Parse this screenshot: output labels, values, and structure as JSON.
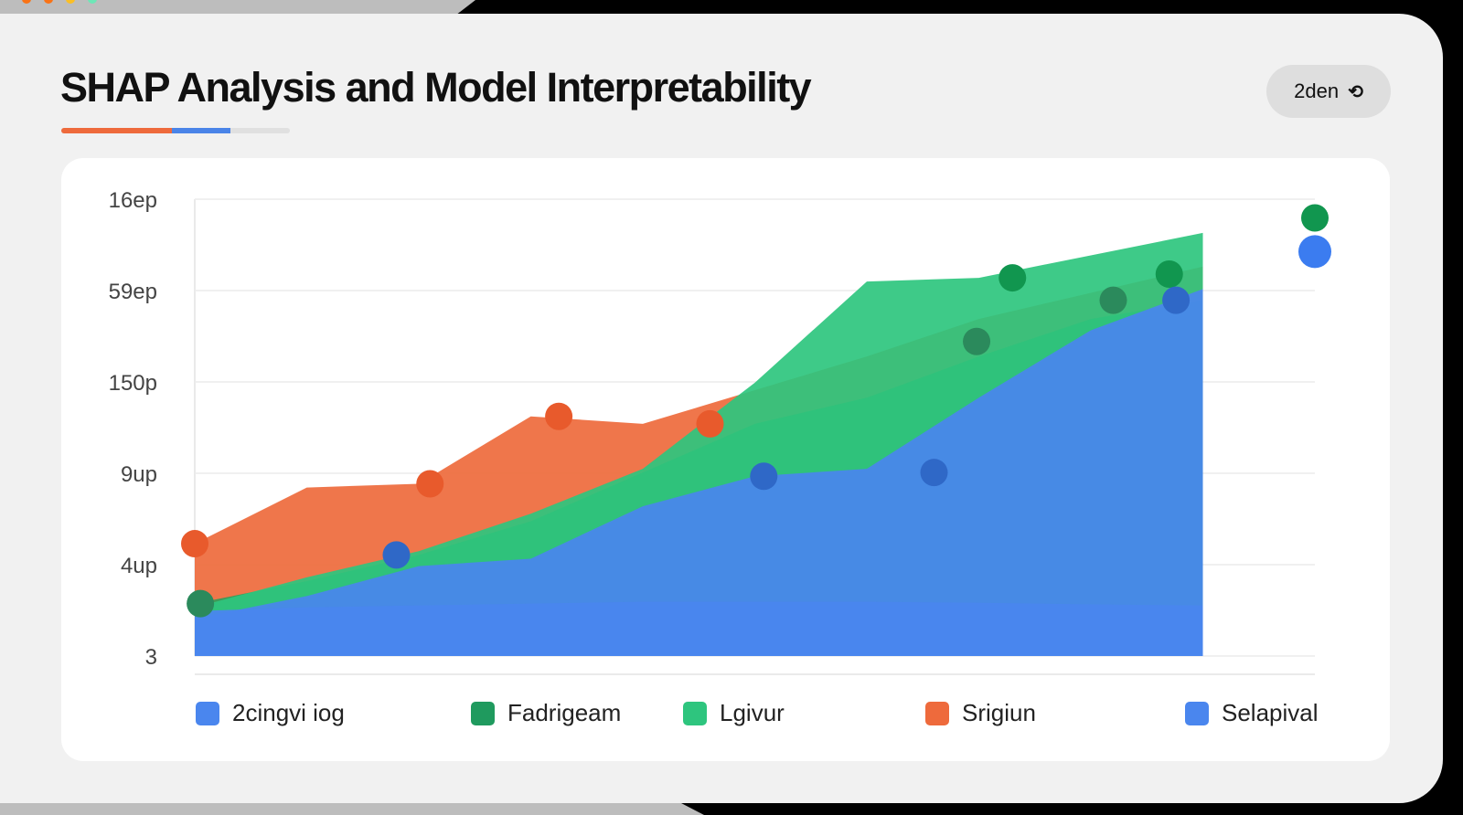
{
  "header": {
    "title": "SHAP Analysis and Model Interpretability",
    "pill_label": "2den",
    "pill_icon": "refresh-icon"
  },
  "chart_data": {
    "type": "area",
    "title": "SHAP Analysis and Model Interpretability",
    "y_ticks": [
      "16ep",
      "59ep",
      "150p",
      "9up",
      "4up",
      "3"
    ],
    "grid": true,
    "legend_position": "bottom",
    "series": [
      {
        "name": "Srigiun",
        "color": "#ee6a3c",
        "points": [
          [
            0,
            4.0
          ],
          [
            1,
            5.5
          ],
          [
            2,
            5.6
          ],
          [
            3,
            7.4
          ],
          [
            4,
            7.2
          ],
          [
            5,
            8.1
          ],
          [
            6,
            9.0
          ],
          [
            7,
            10.0
          ],
          [
            8,
            10.7
          ],
          [
            9,
            11.4
          ]
        ]
      },
      {
        "name": "Fadrigeam",
        "color": "#22a05a",
        "points": [
          [
            0,
            2.4
          ],
          [
            1,
            3.0
          ],
          [
            2,
            3.7
          ],
          [
            3,
            4.6
          ],
          [
            4,
            5.9
          ],
          [
            5,
            7.2
          ],
          [
            6,
            7.9
          ],
          [
            7,
            9.0
          ],
          [
            8,
            10.0
          ],
          [
            9,
            10.5
          ]
        ]
      },
      {
        "name": "Lgivur",
        "color": "#2ec57e",
        "points": [
          [
            0,
            2.3
          ],
          [
            1,
            3.1
          ],
          [
            2,
            3.8
          ],
          [
            3,
            4.8
          ],
          [
            4,
            6.0
          ],
          [
            5,
            8.3
          ],
          [
            6,
            11.0
          ],
          [
            7,
            11.1
          ],
          [
            8,
            11.7
          ],
          [
            9,
            12.3
          ]
        ]
      },
      {
        "name": "2cingvi iog",
        "color": "#4a86ee",
        "points": [
          [
            0,
            2.0
          ],
          [
            1,
            2.6
          ],
          [
            2,
            3.4
          ],
          [
            3,
            3.6
          ],
          [
            4,
            5.0
          ],
          [
            5,
            5.8
          ],
          [
            6,
            6.0
          ],
          [
            7,
            7.9
          ],
          [
            8,
            9.7
          ],
          [
            9,
            10.8
          ]
        ]
      },
      {
        "name": "Selapival",
        "color": "#4a86ee",
        "points": [
          [
            0,
            2.2
          ],
          [
            1,
            2.3
          ],
          [
            2,
            2.35
          ],
          [
            3,
            2.4
          ],
          [
            4,
            2.45
          ],
          [
            5,
            2.45
          ],
          [
            6,
            2.45
          ],
          [
            7,
            2.42
          ],
          [
            8,
            2.38
          ],
          [
            9,
            2.35
          ]
        ]
      }
    ],
    "markers": [
      {
        "series": "Srigiun",
        "x": 0.0,
        "y": 4.0
      },
      {
        "series": "Srigiun",
        "x": 2.1,
        "y": 5.6
      },
      {
        "series": "Srigiun",
        "x": 3.25,
        "y": 7.4
      },
      {
        "series": "Srigiun",
        "x": 4.6,
        "y": 7.2
      },
      {
        "series": "Lgivur",
        "x": 7.3,
        "y": 11.1
      },
      {
        "series": "Lgivur",
        "x": 8.7,
        "y": 11.2
      },
      {
        "series": "Lgivur",
        "x": 10.0,
        "y": 12.7
      },
      {
        "series": "Fadrigeam",
        "x": 0.05,
        "y": 2.4
      },
      {
        "series": "Fadrigeam",
        "x": 6.98,
        "y": 9.4
      },
      {
        "series": "Fadrigeam",
        "x": 8.2,
        "y": 10.5
      },
      {
        "series": "2cingvi iog",
        "x": 1.8,
        "y": 3.7
      },
      {
        "series": "2cingvi iog",
        "x": 5.08,
        "y": 5.8
      },
      {
        "series": "2cingvi iog",
        "x": 6.6,
        "y": 5.9
      },
      {
        "series": "2cingvi iog",
        "x": 8.76,
        "y": 10.5
      },
      {
        "series": "Selapival",
        "x": 10.0,
        "y": 11.8
      }
    ],
    "x_range": [
      0,
      10
    ],
    "y_range": [
      1.0,
      13.2
    ],
    "legend": [
      {
        "label": "2cingvi iog",
        "color": "#4a86ee"
      },
      {
        "label": "Fadrigeam",
        "color": "#1f9a5e"
      },
      {
        "label": "Lgivur",
        "color": "#2ec57e"
      },
      {
        "label": "Srigiun",
        "color": "#ee6a3c"
      },
      {
        "label": "Selapival",
        "color": "#4a86ee"
      }
    ]
  }
}
